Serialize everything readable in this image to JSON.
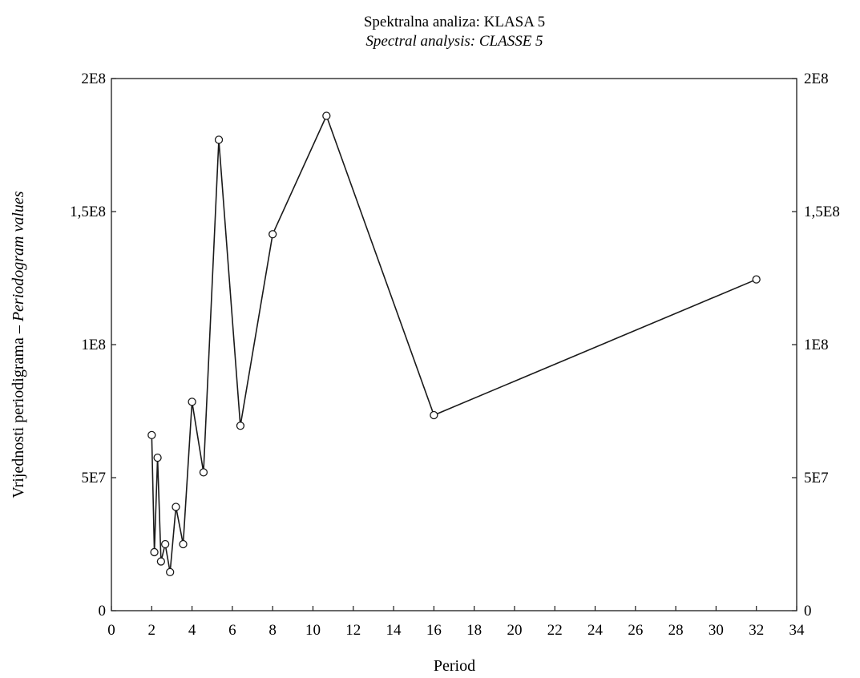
{
  "chart_data": {
    "type": "line",
    "title": "Spektralna analiza: KLASA 5",
    "subtitle": "Spectral analysis: CLASSE 5",
    "xlabel": "Period",
    "ylabel_main": "Vrijednosti periodigrama – ",
    "ylabel_italic": "Periodogram values",
    "xlim": [
      0,
      34
    ],
    "ylim": [
      0,
      200000000
    ],
    "x_ticks": [
      {
        "value": 0,
        "label": "0"
      },
      {
        "value": 2,
        "label": "2"
      },
      {
        "value": 4,
        "label": "4"
      },
      {
        "value": 6,
        "label": "6"
      },
      {
        "value": 8,
        "label": "8"
      },
      {
        "value": 10,
        "label": "10"
      },
      {
        "value": 12,
        "label": "12"
      },
      {
        "value": 14,
        "label": "14"
      },
      {
        "value": 16,
        "label": "16"
      },
      {
        "value": 18,
        "label": "18"
      },
      {
        "value": 20,
        "label": "20"
      },
      {
        "value": 22,
        "label": "22"
      },
      {
        "value": 24,
        "label": "24"
      },
      {
        "value": 26,
        "label": "26"
      },
      {
        "value": 28,
        "label": "28"
      },
      {
        "value": 30,
        "label": "30"
      },
      {
        "value": 32,
        "label": "32"
      },
      {
        "value": 34,
        "label": "34"
      }
    ],
    "y_ticks": [
      {
        "value": 0,
        "label": "0"
      },
      {
        "value": 50000000,
        "label": "5E7"
      },
      {
        "value": 100000000,
        "label": "1E8"
      },
      {
        "value": 150000000,
        "label": "1,5E8"
      },
      {
        "value": 200000000,
        "label": "2E8"
      }
    ],
    "grid": false,
    "legend": "none",
    "series": [
      {
        "x": [
          2.0,
          2.13,
          2.29,
          2.46,
          2.67,
          2.91,
          3.2,
          3.56,
          4.0,
          4.57,
          5.33,
          6.4,
          8.0,
          10.67,
          16.0,
          32.0
        ],
        "y": [
          66000000,
          22000000,
          57500000,
          18500000,
          25000000,
          14500000,
          39000000,
          25000000,
          78500000,
          52000000,
          177000000,
          69500000,
          141500000,
          186000000,
          73500000,
          124500000
        ]
      }
    ],
    "colors": {
      "line": "#1a1a1a",
      "marker_fill": "#ffffff",
      "axis": "#1a1a1a"
    }
  }
}
